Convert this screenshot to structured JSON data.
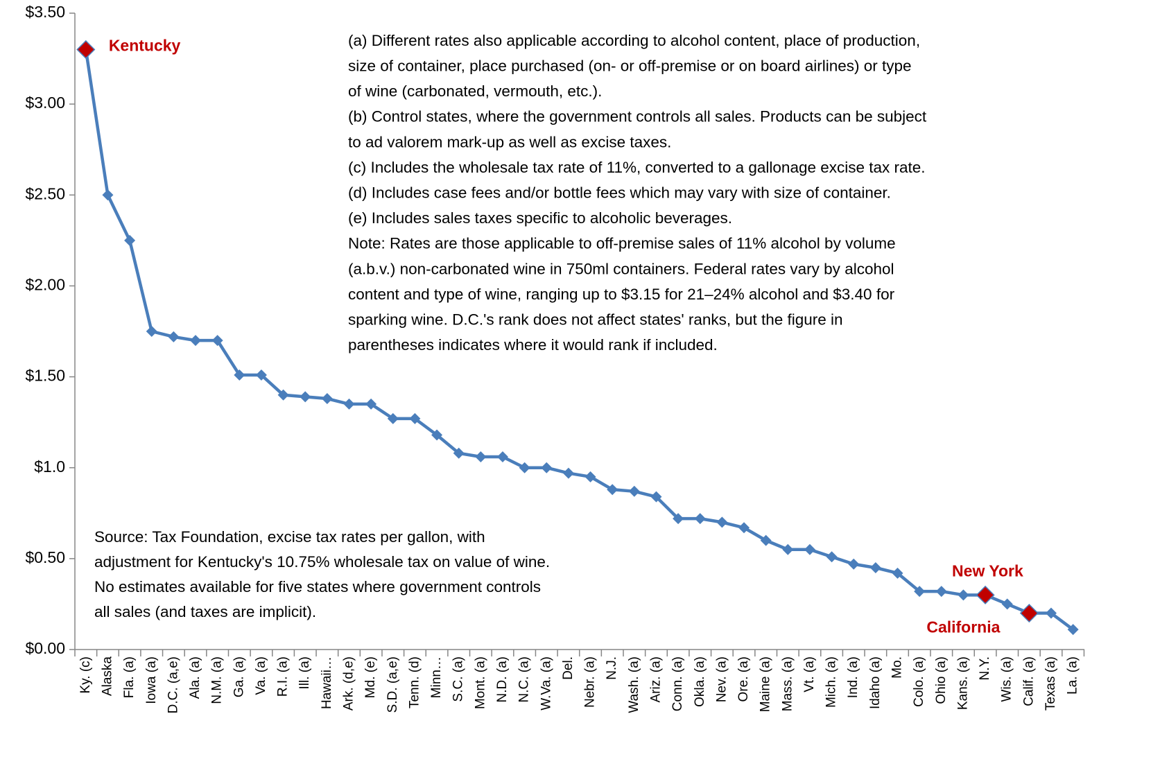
{
  "chart_data": {
    "type": "line",
    "categories": [
      "Ky. (c)",
      "Alaska",
      "Fla. (a)",
      "Iowa (a)",
      "D.C. (a,e)",
      "Ala. (a)",
      "N.M. (a)",
      "Ga. (a)",
      "Va. (a)",
      "R.I. (a)",
      "Ill. (a)",
      "Hawaii…",
      "Ark. (d,e)",
      "Md. (e)",
      "S.D. (a,e)",
      "Tenn. (d)",
      "Minn…",
      "S.C. (a)",
      "Mont. (a)",
      "N.D. (a)",
      "N.C. (a)",
      "W.Va. (a)",
      "Del.",
      "Nebr. (a)",
      "N.J.",
      "Wash. (a)",
      "Ariz. (a)",
      "Conn. (a)",
      "Okla. (a)",
      "Nev. (a)",
      "Ore. (a)",
      "Maine (a)",
      "Mass. (a)",
      "Vt. (a)",
      "Mich. (a)",
      "Ind. (a)",
      "Idaho (a)",
      "Mo.",
      "Colo. (a)",
      "Ohio (a)",
      "Kans. (a)",
      "N.Y.",
      "Wis. (a)",
      "Calif. (a)",
      "Texas (a)",
      "La. (a)"
    ],
    "values": [
      3.3,
      2.5,
      2.25,
      1.75,
      1.72,
      1.7,
      1.7,
      1.51,
      1.51,
      1.4,
      1.39,
      1.38,
      1.35,
      1.35,
      1.27,
      1.27,
      1.18,
      1.08,
      1.06,
      1.06,
      1.0,
      1.0,
      0.97,
      0.95,
      0.88,
      0.87,
      0.84,
      0.72,
      0.72,
      0.7,
      0.67,
      0.6,
      0.55,
      0.55,
      0.51,
      0.47,
      0.45,
      0.42,
      0.32,
      0.32,
      0.3,
      0.3,
      0.25,
      0.2,
      0.2,
      0.11
    ],
    "color": "#4a7ebb",
    "highlight_color": "#c00000",
    "ylim": [
      0,
      3.5
    ],
    "yticks": [
      {
        "value": 0,
        "label": "$0.00"
      },
      {
        "value": 0.5,
        "label": "$0.50"
      },
      {
        "value": 1,
        "label": "$1.0"
      },
      {
        "value": 1.5,
        "label": "$1.50"
      },
      {
        "value": 2,
        "label": "$2.00"
      },
      {
        "value": 2.5,
        "label": "$2.50"
      },
      {
        "value": 3,
        "label": "$3.00"
      },
      {
        "value": 3.5,
        "label": "$3.50"
      }
    ],
    "annotations": [
      {
        "text": "Kentucky",
        "index": 0
      },
      {
        "text": "New York",
        "index": 41
      },
      {
        "text": "California",
        "index": 43
      }
    ],
    "notes": [
      "(a) Different rates also applicable according to alcohol content, place of production,",
      "size of container, place purchased (on- or off-premise or on board airlines) or type",
      "of wine (carbonated, vermouth, etc.).",
      "(b) Control states, where the government controls all sales. Products can be subject",
      "to ad valorem mark-up as well as excise taxes.",
      "(c) Includes the wholesale tax rate of 11%, converted to a gallonage excise tax rate.",
      "(d) Includes case fees and/or bottle fees which may vary with size of container.",
      "(e) Includes sales taxes specific to alcoholic beverages.",
      "Note: Rates are those applicable to off-premise sales of 11% alcohol by volume",
      "(a.b.v.) non-carbonated wine in 750ml containers. Federal rates vary by alcohol",
      "content and type of wine, ranging up to $3.15 for 21–24% alcohol and $3.40 for",
      "sparking wine. D.C.'s rank does not affect states' ranks, but the figure in",
      "parentheses indicates where it would rank if included."
    ],
    "source": [
      "Source: Tax Foundation, excise tax rates per gallon, with",
      "adjustment for Kentucky's 10.75% wholesale tax on value of wine.",
      "No estimates available for five states where government controls",
      "all sales (and taxes are implicit)."
    ]
  }
}
